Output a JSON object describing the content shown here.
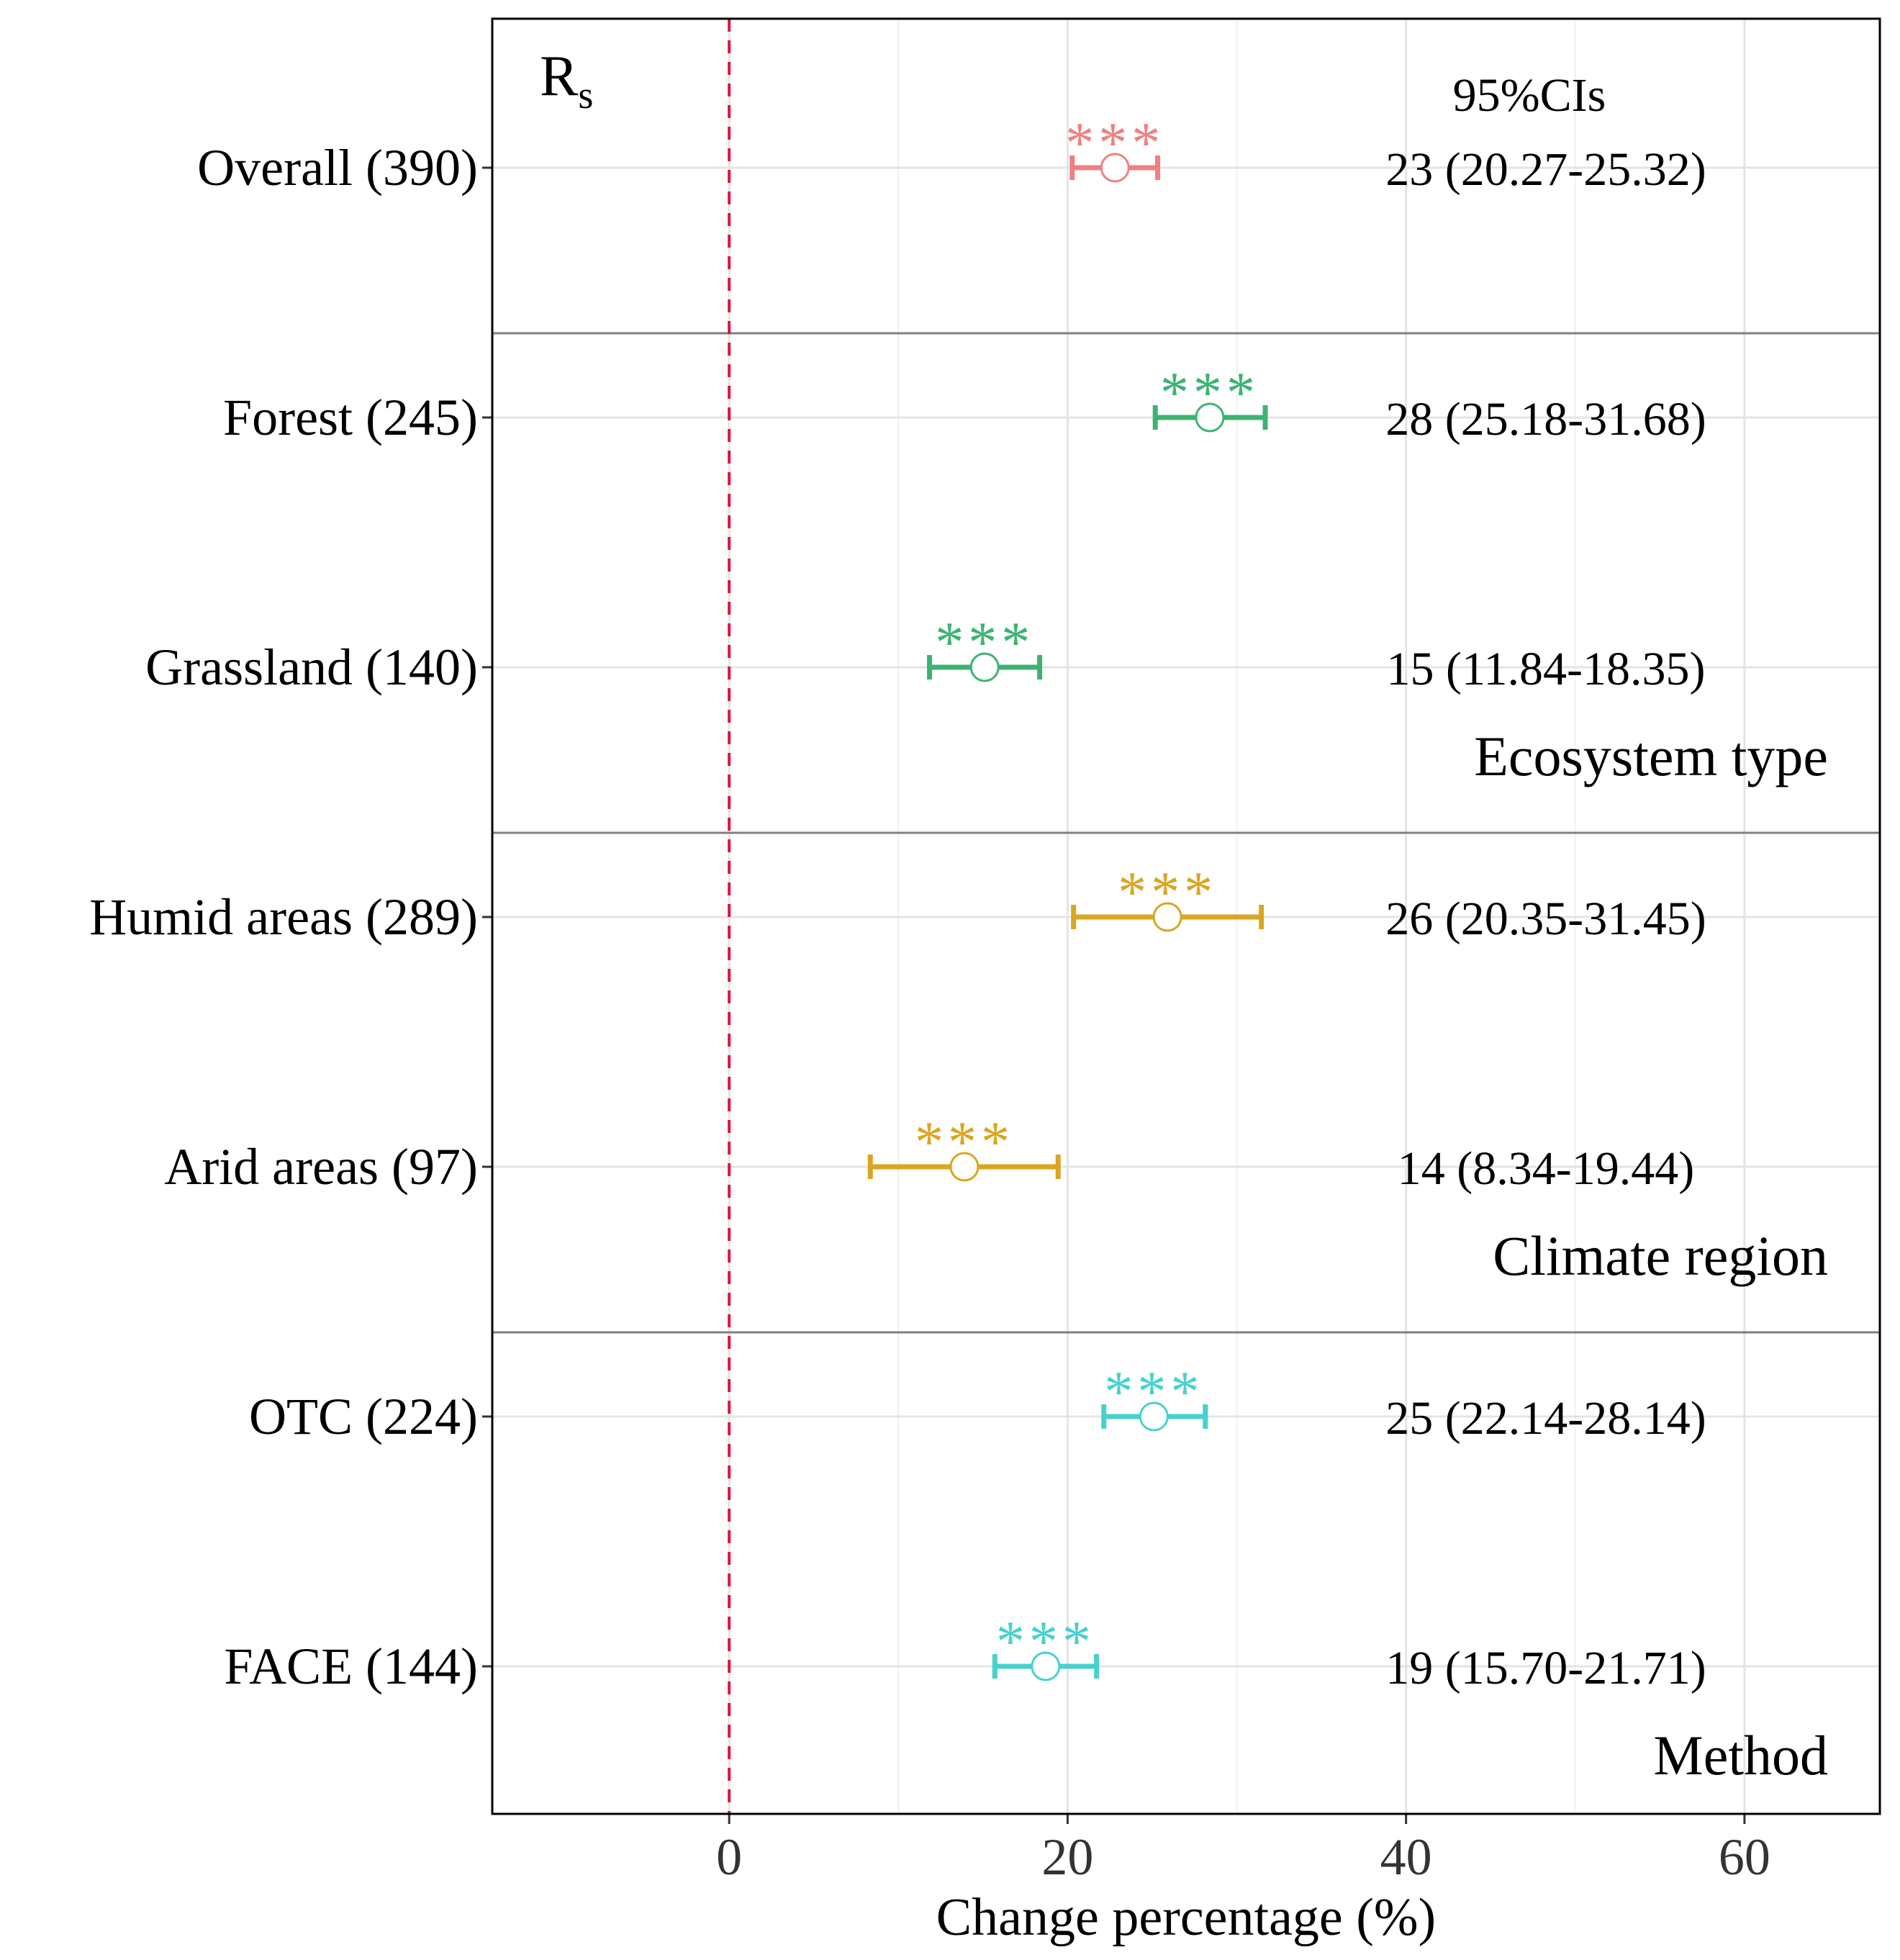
{
  "chart_data": {
    "type": "forest",
    "xlabel": "Change percentage (%)",
    "xlim": [
      -14,
      68
    ],
    "xticks": [
      0,
      20,
      40,
      60
    ],
    "reference_line": 0,
    "grid": true,
    "panel_label": {
      "main": "R",
      "sub": "s"
    },
    "ci_header": "95%CIs",
    "rows": [
      {
        "label": "Overall (390)",
        "estimate": 22.8,
        "lower": 20.27,
        "upper": 25.32,
        "ci_text": "23 (20.27-25.32)",
        "sig": "***",
        "color": "#F08080"
      },
      {
        "label": "Forest (245)",
        "estimate": 28.4,
        "lower": 25.18,
        "upper": 31.68,
        "ci_text": "28 (25.18-31.68)",
        "sig": "***",
        "color": "#3CB371"
      },
      {
        "label": "Grassland (140)",
        "estimate": 15.1,
        "lower": 11.84,
        "upper": 18.35,
        "ci_text": "15 (11.84-18.35)",
        "sig": "***",
        "color": "#3CB371"
      },
      {
        "label": "Humid areas (289)",
        "estimate": 25.9,
        "lower": 20.35,
        "upper": 31.45,
        "ci_text": "26 (20.35-31.45)",
        "sig": "***",
        "color": "#DAA520"
      },
      {
        "label": "Arid areas (97)",
        "estimate": 13.9,
        "lower": 8.34,
        "upper": 19.44,
        "ci_text": "14 (8.34-19.44)",
        "sig": "***",
        "color": "#DAA520"
      },
      {
        "label": "OTC (224)",
        "estimate": 25.1,
        "lower": 22.14,
        "upper": 28.14,
        "ci_text": "25 (22.14-28.14)",
        "sig": "***",
        "color": "#48D1CC"
      },
      {
        "label": "FACE (144)",
        "estimate": 18.7,
        "lower": 15.7,
        "upper": 21.71,
        "ci_text": "19 (15.70-21.71)",
        "sig": "***",
        "color": "#48D1CC"
      }
    ],
    "groups": [
      {
        "label": "",
        "rows": [
          0
        ]
      },
      {
        "label": "Ecosystem type",
        "rows": [
          1,
          2
        ]
      },
      {
        "label": "Climate region",
        "rows": [
          3,
          4
        ]
      },
      {
        "label": "Method",
        "rows": [
          5,
          6
        ]
      }
    ]
  }
}
